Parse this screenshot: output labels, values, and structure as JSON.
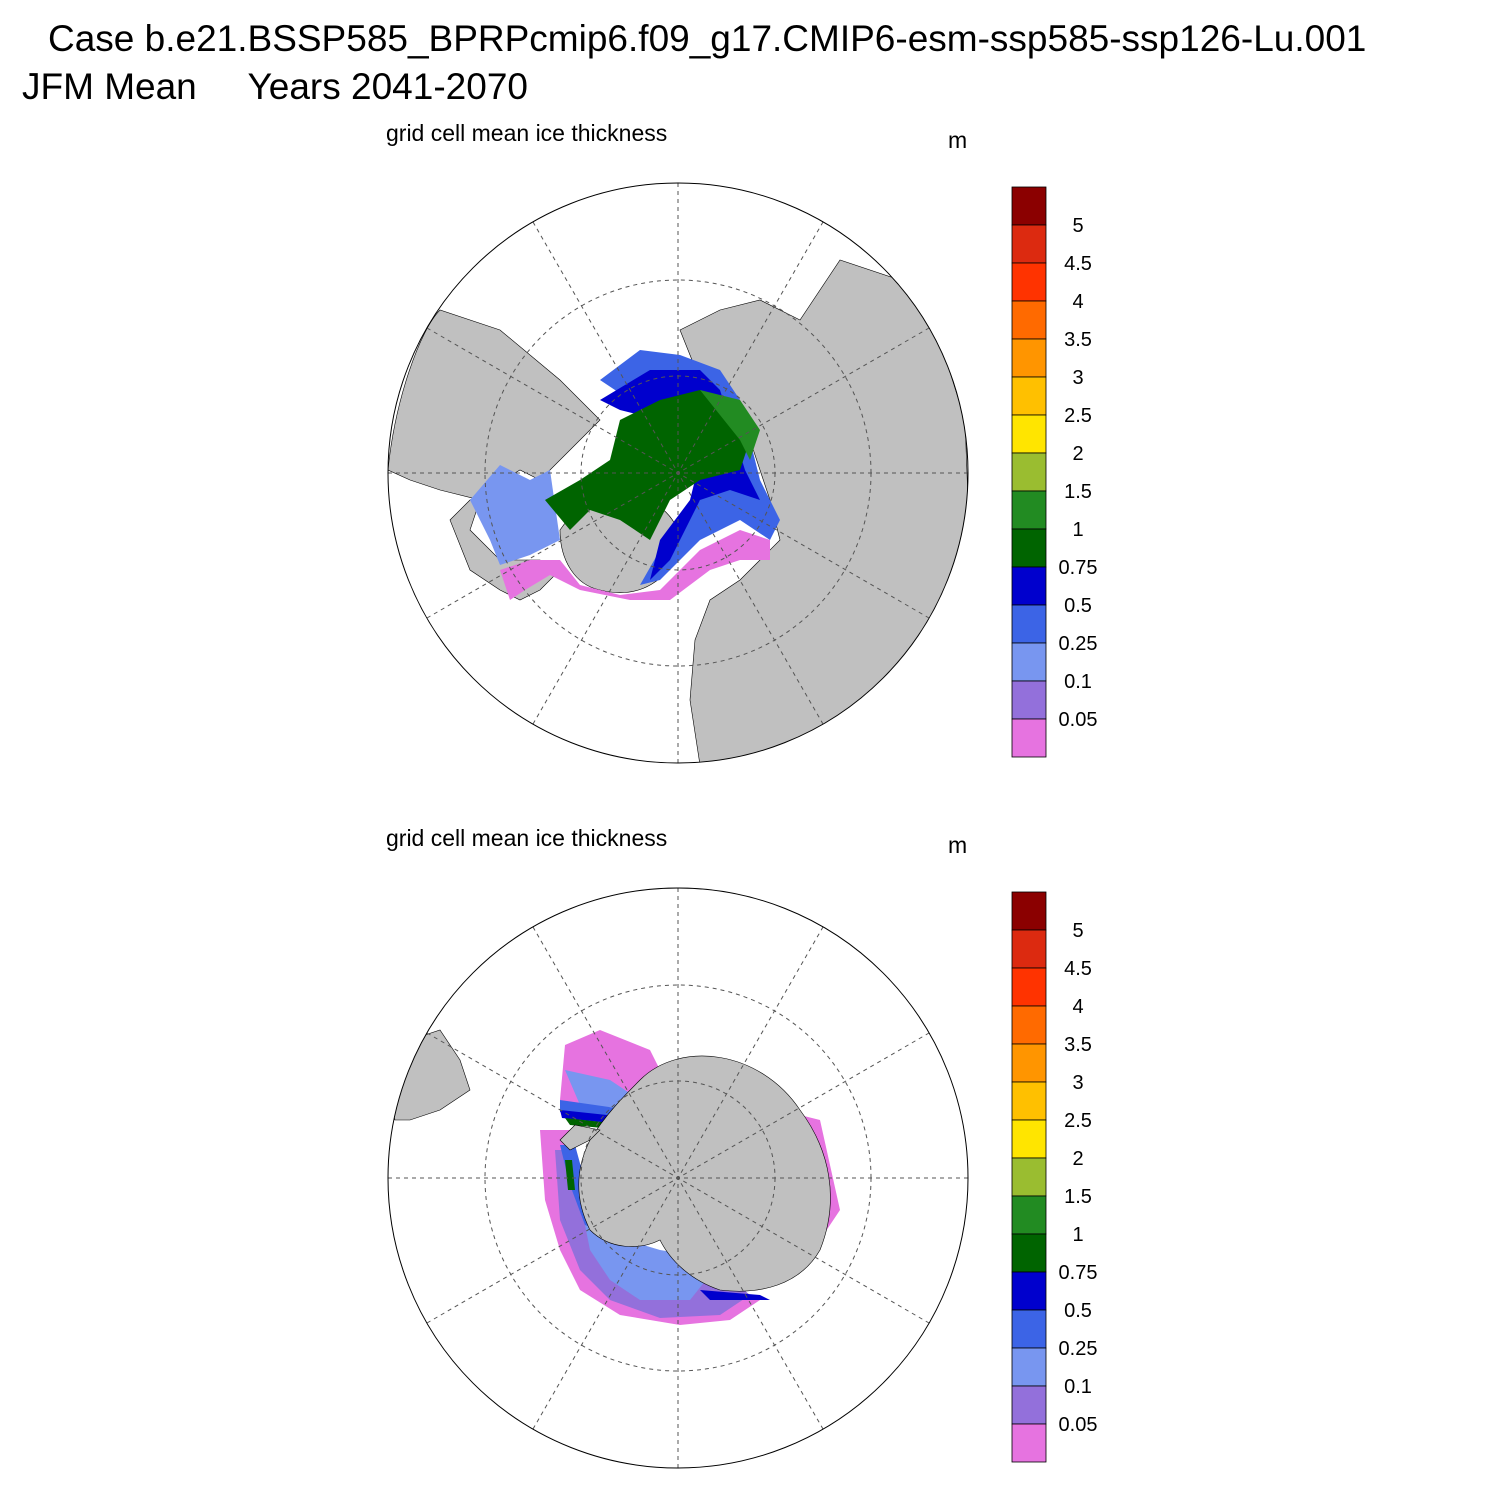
{
  "title": "Case b.e21.BSSP585_BPRPcmip6.f09_g17.CMIP6-esm-ssp585-ssp126-Lu.001",
  "subtitle": "JFM Mean     Years 2041-2070",
  "panels": [
    {
      "name": "north",
      "title": "grid cell mean ice thickness",
      "units": "m"
    },
    {
      "name": "south",
      "title": "grid cell mean ice thickness",
      "units": "m"
    }
  ],
  "colorbar": {
    "labels": [
      "5",
      "4.5",
      "4",
      "3.5",
      "3",
      "2.5",
      "2",
      "1.5",
      "1",
      "0.75",
      "0.5",
      "0.25",
      "0.1",
      "0.05"
    ],
    "colors": [
      "#8b0000",
      "#dc2a10",
      "#ff3300",
      "#ff6a00",
      "#ff9500",
      "#ffc000",
      "#ffe500",
      "#9abd30",
      "#228b22",
      "#006400",
      "#0000cd",
      "#3c64e6",
      "#7896f0",
      "#9370db",
      "#e673e0"
    ]
  },
  "colors": {
    "land": "#c0c0c0",
    "ocean": "#ffffff"
  }
}
